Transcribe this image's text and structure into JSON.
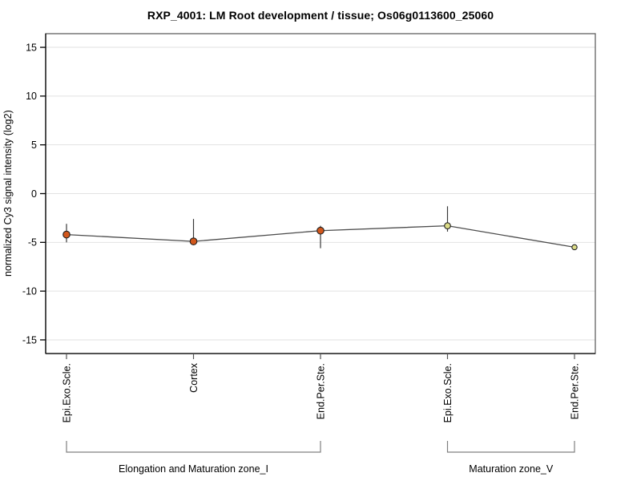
{
  "title": "RXP_4001: LM Root development / tissue; Os06g0113600_25060",
  "y_axis_label": "normalized Cy3 signal intensity (log2)",
  "chart_data": {
    "type": "line",
    "title": "RXP_4001: LM Root development / tissue; Os06g0113600_25060",
    "ylabel": "normalized Cy3 signal intensity (log2)",
    "xlabel": "",
    "categories": [
      "Epi.Exo.Scle.",
      "Cortex",
      "End.Per.Ste.",
      "Epi.Exo.Scle.",
      "End.Per.Ste."
    ],
    "values": [
      -4.2,
      -4.9,
      -3.8,
      -3.3,
      -5.5
    ],
    "error_high": [
      -3.1,
      -2.6,
      -3.3,
      -1.3,
      -5.5
    ],
    "error_low": [
      -5.0,
      -5.2,
      -5.6,
      -3.9,
      -5.5
    ],
    "yticks": [
      15,
      10,
      5,
      0,
      -5,
      -10,
      -15
    ],
    "ylim": [
      -16.4,
      16.4
    ],
    "grid": "horizontal",
    "legend": "none",
    "groups": [
      {
        "label": "Elongation and Maturation zone_I",
        "from": 0,
        "to": 2
      },
      {
        "label": "Maturation zone_V",
        "from": 3,
        "to": 4
      }
    ],
    "colors": {
      "point_fills": [
        "#d2571c",
        "#d2571c",
        "#d2571c",
        "#dcdc87",
        "#dcdc87"
      ],
      "point_edge": "#222222",
      "line": "#4d4d4d",
      "error_bar": "#3a3a3a",
      "grid": "#e2e2e2",
      "frame": "#555555",
      "axis": "#000000",
      "x_tick": "#555555",
      "bracket": "#808080"
    },
    "point_radii": [
      4.3,
      4.3,
      4.3,
      3.8,
      3.2
    ]
  }
}
